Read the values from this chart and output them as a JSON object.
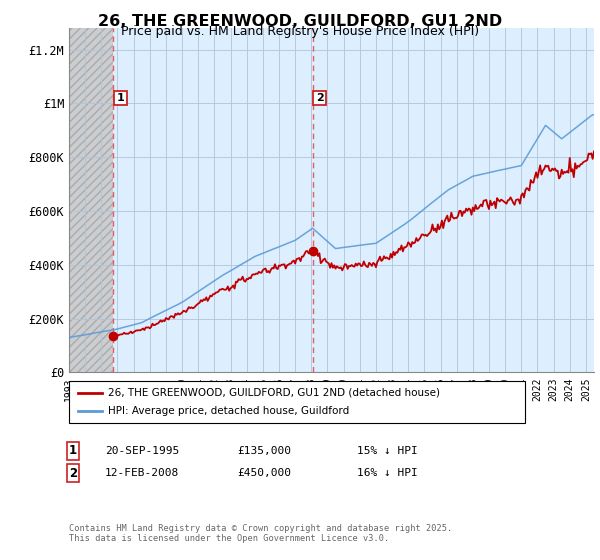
{
  "title": "26, THE GREENWOOD, GUILDFORD, GU1 2ND",
  "subtitle": "Price paid vs. HM Land Registry's House Price Index (HPI)",
  "sale1_price": 135000,
  "sale1_year": 1995.75,
  "sale2_price": 450000,
  "sale2_year": 2008.08,
  "legend_line1": "26, THE GREENWOOD, GUILDFORD, GU1 2ND (detached house)",
  "legend_line2": "HPI: Average price, detached house, Guildford",
  "ylabel_ticks": [
    "£0",
    "£200K",
    "£400K",
    "£600K",
    "£800K",
    "£1M",
    "£1.2M"
  ],
  "ytick_values": [
    0,
    200000,
    400000,
    600000,
    800000,
    1000000,
    1200000
  ],
  "ylim": [
    0,
    1280000
  ],
  "xlim_start": 1993.0,
  "xlim_end": 2025.5,
  "hpi_color": "#5b9bd5",
  "price_color": "#c00000",
  "hatch_bg_color": "#d8d8d8",
  "chart_bg_color": "#ddeeff",
  "dashed_line_color": "#e06060"
}
